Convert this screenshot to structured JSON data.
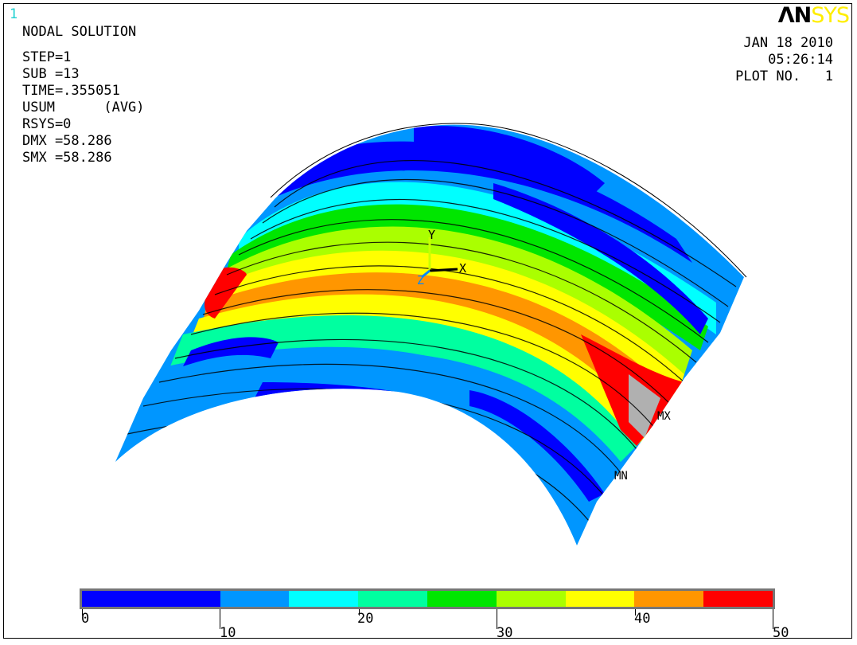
{
  "window_number": "1",
  "logo": {
    "part1": "ΛN",
    "part2": "SYS"
  },
  "title": "NODAL SOLUTION",
  "info_lines": [
    "STEP=1",
    "SUB =13",
    "TIME=.355051",
    "USUM      (AVG)",
    "RSYS=0",
    "DMX =58.286",
    "SMX =58.286"
  ],
  "stamp": {
    "date": "JAN 18 2010",
    "time": "05:26:14",
    "plot": "PLOT NO.   1"
  },
  "axes": {
    "y": "Y",
    "x": "X",
    "z": "Z"
  },
  "markers": {
    "max": "MX",
    "min": "MN"
  },
  "legend": {
    "colors": [
      "#0000ff",
      "#0096ff",
      "#00ffff",
      "#00ffa0",
      "#00e600",
      "#aaff00",
      "#ffff00",
      "#ff9600",
      "#ff0000"
    ],
    "labels_top": [
      "0",
      "20",
      "40"
    ],
    "labels_bottom": [
      "10",
      "30",
      "50"
    ]
  }
}
